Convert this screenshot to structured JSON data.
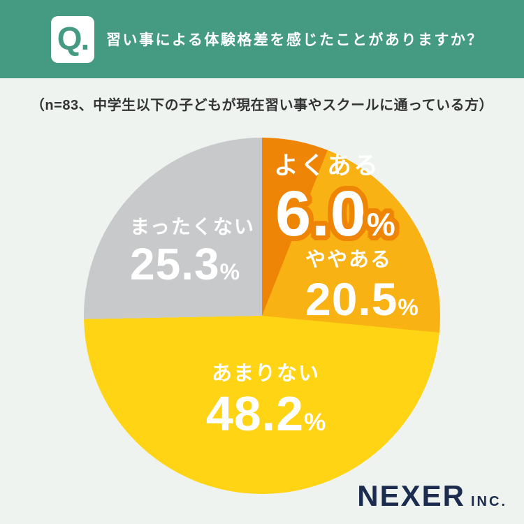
{
  "header": {
    "q_label": "Q.",
    "title": "習い事による体験格差を感じたことがありますか？"
  },
  "subtitle": "（n=83、中学生以下の子どもが現在習い事やスクールに通っている方）",
  "footer": {
    "brand": "NEXER",
    "brand_suffix": "INC."
  },
  "colors": {
    "header_green": "#459b82",
    "page_bg": "#eef3f0",
    "text_dark": "#333333",
    "brand_navy": "#1b2c4e",
    "outline_orange": "#ee8506",
    "label_white": "#ffffff"
  },
  "chart_data": {
    "type": "pie",
    "title": "習い事による体験格差を感じたことがありますか？",
    "sample_note": "n=83、中学生以下の子どもが現在習い事やスクールに通っている方",
    "unit": "%",
    "start_angle_deg": 0,
    "direction": "clockwise",
    "segments": [
      {
        "label": "よくある",
        "value": 6.0,
        "display": "6.0",
        "color": "#ee8506"
      },
      {
        "label": "ややある",
        "value": 20.5,
        "display": "20.5",
        "color": "#f9b214"
      },
      {
        "label": "あまりない",
        "value": 48.2,
        "display": "48.2",
        "color": "#ffd414"
      },
      {
        "label": "まったくない",
        "value": 25.3,
        "display": "25.3",
        "color": "#c8c9ca"
      }
    ],
    "legend_position": "on-slices",
    "grid": false
  }
}
